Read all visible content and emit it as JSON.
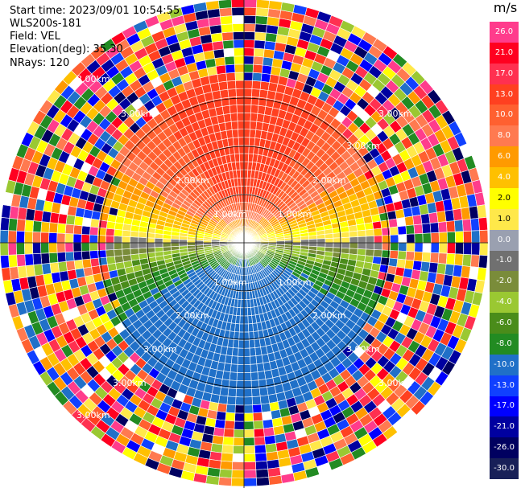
{
  "info": {
    "start_time": "Start time: 2023/09/01 10:54:55",
    "site": "WLS200s-181",
    "field": "Field: VEL",
    "elevation": "Elevation(deg): 35.30",
    "nrays": "NRays: 120"
  },
  "colorbar": {
    "unit": "m/s",
    "ticks": [
      "26.0",
      "21.0",
      "17.0",
      "13.0",
      "10.0",
      "8.0",
      "6.0",
      "4.0",
      "2.0",
      "1.0",
      "0.0",
      "-1.0",
      "-2.0",
      "-4.0",
      "-6.0",
      "-8.0",
      "-10.0",
      "-13.0",
      "-17.0",
      "-21.0",
      "-26.0",
      "-30.0"
    ],
    "colors": [
      "#ff3c8c",
      "#ff0020",
      "#ff3050",
      "#ff4020",
      "#ff6030",
      "#ff7a50",
      "#ff9a00",
      "#ffc000",
      "#ffff00",
      "#ffe84a",
      "#9aa0b0",
      "#707070",
      "#7a8c3a",
      "#9ac832",
      "#4a8c1a",
      "#228b22",
      "#2070c8",
      "#1040ff",
      "#0000ff",
      "#0000a0",
      "#000060",
      "#182058"
    ]
  },
  "chart_data": {
    "type": "polar-ppi",
    "field": "VEL",
    "nrays": 120,
    "range_rings_km": [
      1.0,
      2.0,
      3.0,
      3.0
    ],
    "ring_labels": [
      "1.00km",
      "2.00km",
      "3.00km",
      "3.00km"
    ],
    "units": "m/s",
    "velocity_pattern": {
      "north_sector": "positive 8 to 17 m/s (orange/red)",
      "east_west_axis": "near zero, 0 to 2 m/s (yellow/grey)",
      "south_sector": "negative -2 to -10 m/s (green/blue)"
    }
  }
}
